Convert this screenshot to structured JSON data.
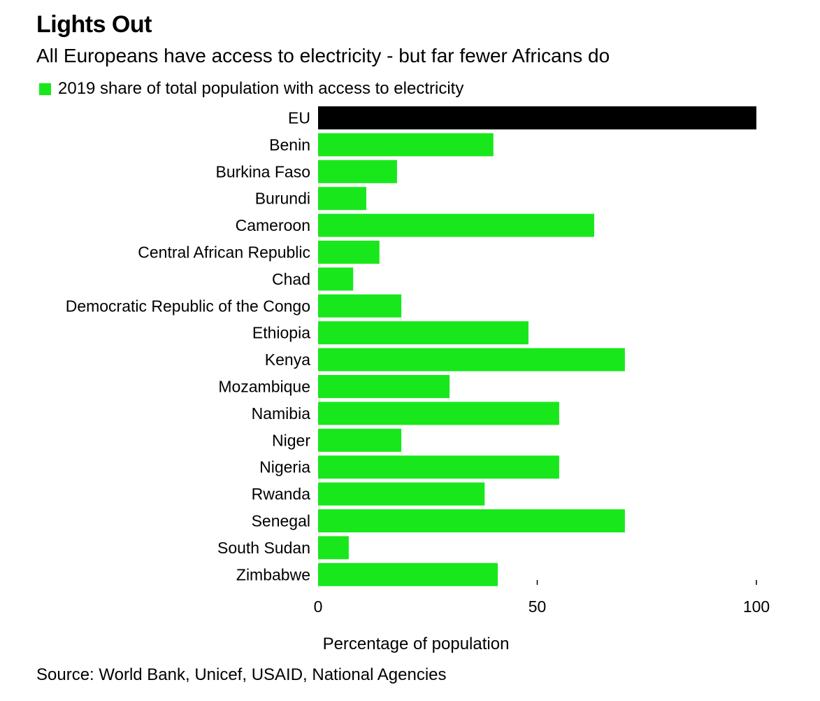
{
  "header": {
    "title": "Lights Out",
    "subtitle": "All Europeans have access to electricity - but far fewer Africans do"
  },
  "legend": {
    "label": "2019 share of total population with access to electricity",
    "color": "#18e81b"
  },
  "footer": {
    "source": "Source: World Bank, Unicef, USAID, National Agencies"
  },
  "colors": {
    "highlight": "#000000",
    "bar": "#18e81b",
    "text": "#000000",
    "background": "#ffffff"
  },
  "chart_data": {
    "type": "bar",
    "orientation": "horizontal",
    "title": "Lights Out",
    "subtitle": "All Europeans have access to electricity - but far fewer Africans do",
    "xlabel": "Percentage of population",
    "ylabel": "",
    "xlim": [
      0,
      100
    ],
    "xticks": [
      0,
      50,
      100
    ],
    "grid": false,
    "legend_position": "top-left",
    "categories": [
      "EU",
      "Benin",
      "Burkina Faso",
      "Burundi",
      "Cameroon",
      "Central African Republic",
      "Chad",
      "Democratic Republic of the Congo",
      "Ethiopia",
      "Kenya",
      "Mozambique",
      "Namibia",
      "Niger",
      "Nigeria",
      "Rwanda",
      "Senegal",
      "South Sudan",
      "Zimbabwe"
    ],
    "series": [
      {
        "name": "2019 share of total population with access to electricity",
        "values": [
          100,
          40,
          18,
          11,
          63,
          14,
          8,
          19,
          48,
          70,
          30,
          55,
          19,
          55,
          38,
          70,
          7,
          41
        ]
      }
    ],
    "highlight_category": "EU"
  }
}
